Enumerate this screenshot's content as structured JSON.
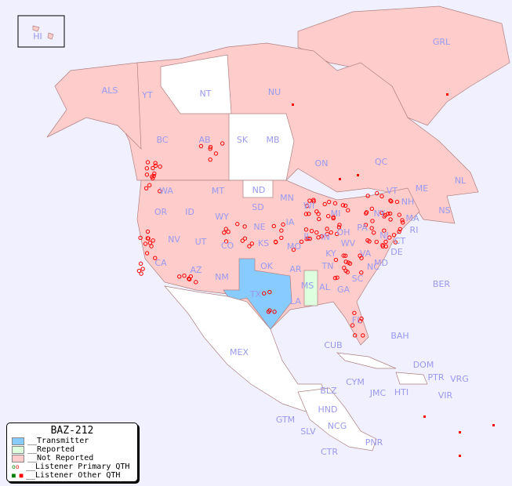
{
  "legend": {
    "title": "BAZ-212",
    "items": [
      {
        "label": "__Transmitter",
        "color": "#88ccff"
      },
      {
        "label": "__Reported",
        "color": "#ddffdd"
      },
      {
        "label": "__Not Reported",
        "color": "#ffcccc"
      },
      {
        "label": "__Listener Primary QTH",
        "symbol": "circle"
      },
      {
        "label": "__Listener Other QTH",
        "symbol": "square"
      }
    ]
  },
  "colors": {
    "ocean": "#f0f0ff",
    "transmitter": "#88ccff",
    "reported": "#ddffdd",
    "not_reported": "#ffcccc",
    "unlisted": "#ffffff",
    "listener": "#ff0000",
    "label": "#9999ee"
  },
  "regions": [
    "HI",
    "ALS",
    "YT",
    "NT",
    "NU",
    "GRL",
    "BC",
    "AB",
    "SK",
    "MB",
    "ON",
    "QC",
    "NL",
    "NS",
    "WA",
    "OR",
    "ID",
    "MT",
    "WY",
    "ND",
    "SD",
    "NE",
    "MN",
    "WI",
    "IA",
    "IL",
    "IN",
    "MI",
    "OH",
    "PA",
    "NY",
    "VT",
    "NH",
    "ME",
    "MA",
    "RI",
    "CT",
    "NJ",
    "DE",
    "MD",
    "WV",
    "VA",
    "KY",
    "TN",
    "NC",
    "SC",
    "GA",
    "FL",
    "AL",
    "MS",
    "LA",
    "AR",
    "MO",
    "KS",
    "OK",
    "TX",
    "NM",
    "CO",
    "UT",
    "AZ",
    "NV",
    "CA",
    "MEX",
    "CUB",
    "BAH",
    "BER",
    "DOM",
    "PTR",
    "VRG",
    "CYM",
    "JMC",
    "HTI",
    "VIR",
    "BLZ",
    "HND",
    "GTM",
    "SLV",
    "NCG",
    "CTR",
    "PNR"
  ]
}
